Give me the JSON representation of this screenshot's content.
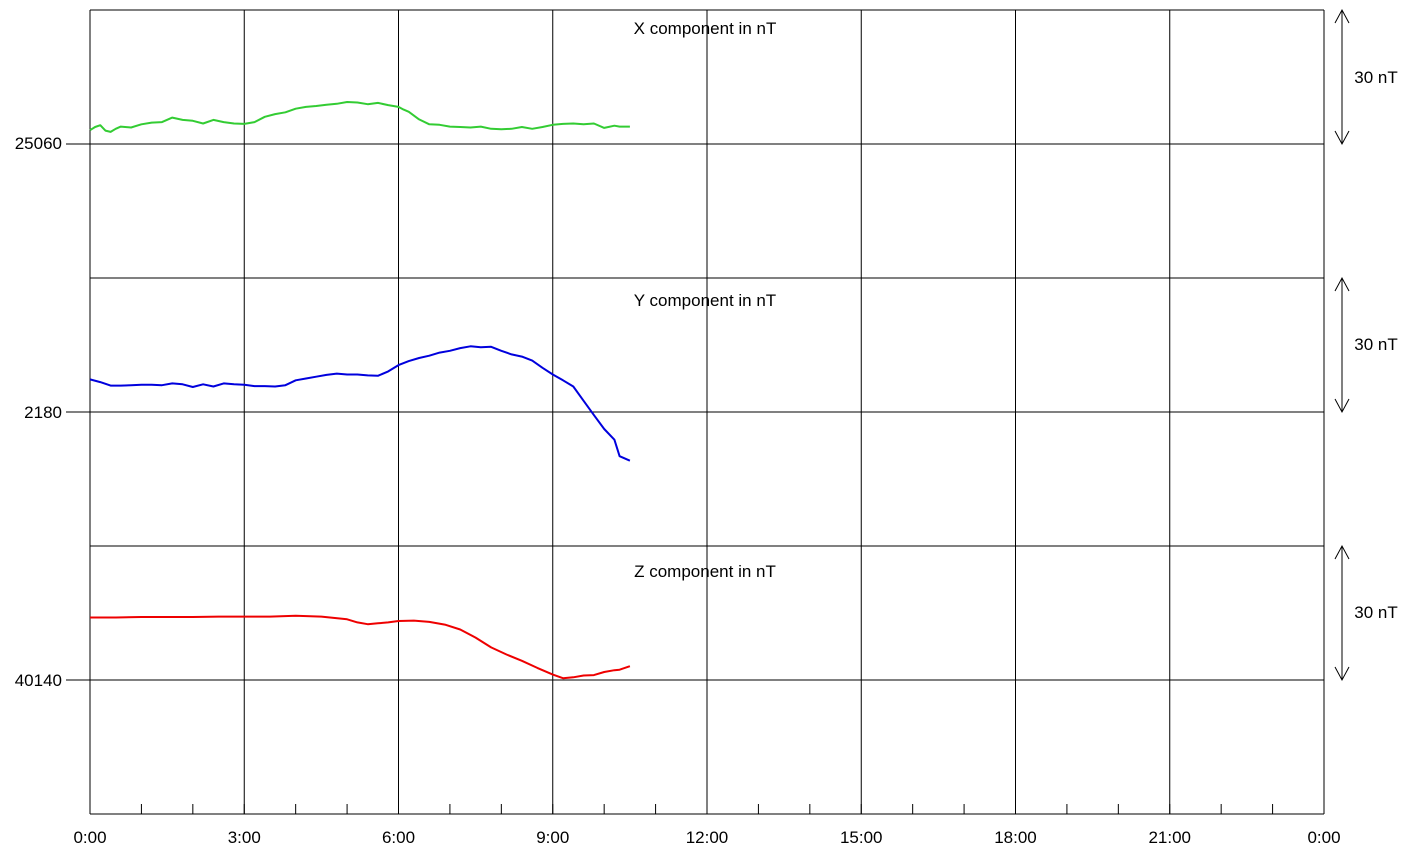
{
  "chart_data": [
    {
      "type": "line",
      "title": "X component in nT",
      "baseline_label": "25060",
      "baseline": 25060,
      "scale_label": "30 nT",
      "ylim": [
        25030,
        25090
      ],
      "xlim": [
        0,
        24
      ],
      "series": [
        {
          "color": "#33cc33",
          "x": [
            0,
            0.1,
            0.2,
            0.3,
            0.4,
            0.5,
            0.6,
            0.8,
            1.0,
            1.2,
            1.4,
            1.6,
            1.8,
            2.0,
            2.2,
            2.4,
            2.6,
            2.8,
            3.0,
            3.2,
            3.4,
            3.6,
            3.8,
            4.0,
            4.2,
            4.4,
            4.6,
            4.8,
            5.0,
            5.2,
            5.4,
            5.6,
            5.8,
            6.0,
            6.1,
            6.2,
            6.4,
            6.6,
            6.8,
            7.0,
            7.2,
            7.4,
            7.6,
            7.8,
            8.0,
            8.2,
            8.4,
            8.6,
            8.8,
            9.0,
            9.2,
            9.4,
            9.6,
            9.8,
            10.0,
            10.2,
            10.3,
            10.5
          ],
          "y": [
            25063.1,
            25063.8,
            25064.2,
            25063.0,
            25062.7,
            25063.4,
            25063.9,
            25063.7,
            25064.4,
            25064.8,
            25064.9,
            25065.9,
            25065.4,
            25065.2,
            25064.6,
            25065.4,
            25064.9,
            25064.6,
            25064.5,
            25064.9,
            25066.1,
            25066.7,
            25067.1,
            25067.9,
            25068.3,
            25068.5,
            25068.8,
            25069.0,
            25069.4,
            25069.3,
            25068.9,
            25069.2,
            25068.7,
            25068.3,
            25067.7,
            25067.2,
            25065.5,
            25064.4,
            25064.3,
            25063.9,
            25063.8,
            25063.7,
            25063.9,
            25063.4,
            25063.3,
            25063.4,
            25063.8,
            25063.4,
            25063.8,
            25064.3,
            25064.5,
            25064.6,
            25064.4,
            25064.6,
            25063.6,
            25064.1,
            25063.9,
            25063.9
          ]
        }
      ]
    },
    {
      "type": "line",
      "title": "Y component in nT",
      "baseline_label": "2180",
      "baseline": 2180,
      "scale_label": "30 nT",
      "ylim": [
        2150,
        2210
      ],
      "xlim": [
        0,
        24
      ],
      "series": [
        {
          "color": "#0000dd",
          "x": [
            0,
            0.2,
            0.4,
            0.6,
            0.8,
            1.0,
            1.2,
            1.4,
            1.6,
            1.8,
            2.0,
            2.2,
            2.4,
            2.6,
            2.8,
            3.0,
            3.2,
            3.4,
            3.6,
            3.8,
            4.0,
            4.2,
            4.4,
            4.6,
            4.8,
            5.0,
            5.2,
            5.4,
            5.6,
            5.8,
            6.0,
            6.2,
            6.4,
            6.6,
            6.8,
            7.0,
            7.2,
            7.4,
            7.6,
            7.8,
            8.0,
            8.2,
            8.4,
            8.6,
            8.8,
            9.0,
            9.2,
            9.4,
            9.6,
            9.8,
            10.0,
            10.2,
            10.3,
            10.5
          ],
          "y": [
            2187.3,
            2186.7,
            2185.9,
            2185.9,
            2186.0,
            2186.1,
            2186.1,
            2186.0,
            2186.4,
            2186.2,
            2185.6,
            2186.2,
            2185.7,
            2186.4,
            2186.2,
            2186.1,
            2185.8,
            2185.8,
            2185.7,
            2186.0,
            2187.1,
            2187.5,
            2187.9,
            2188.3,
            2188.6,
            2188.4,
            2188.4,
            2188.2,
            2188.1,
            2189.1,
            2190.5,
            2191.4,
            2192.1,
            2192.6,
            2193.3,
            2193.7,
            2194.3,
            2194.7,
            2194.5,
            2194.6,
            2193.7,
            2192.9,
            2192.4,
            2191.5,
            2189.9,
            2188.4,
            2187.1,
            2185.7,
            2182.5,
            2179.3,
            2176.2,
            2173.8,
            2170.1,
            2169.1
          ]
        }
      ]
    },
    {
      "type": "line",
      "title": "Z component in nT",
      "baseline_label": "40140",
      "baseline": 40140,
      "scale_label": "30 nT",
      "ylim": [
        40110,
        40170
      ],
      "xlim": [
        0,
        24
      ],
      "series": [
        {
          "color": "#ee0000",
          "x": [
            0,
            0.5,
            1.0,
            1.5,
            2.0,
            2.5,
            3.0,
            3.5,
            4.0,
            4.5,
            5.0,
            5.2,
            5.4,
            5.6,
            5.8,
            6.0,
            6.3,
            6.6,
            6.9,
            7.2,
            7.5,
            7.8,
            8.1,
            8.4,
            8.7,
            9.0,
            9.2,
            9.4,
            9.6,
            9.8,
            10.0,
            10.2,
            10.3,
            10.5
          ],
          "y": [
            40154.0,
            40154.0,
            40154.1,
            40154.1,
            40154.1,
            40154.2,
            40154.2,
            40154.2,
            40154.4,
            40154.2,
            40153.6,
            40152.9,
            40152.5,
            40152.7,
            40152.9,
            40153.2,
            40153.3,
            40153.0,
            40152.4,
            40151.3,
            40149.5,
            40147.3,
            40145.7,
            40144.3,
            40142.7,
            40141.2,
            40140.4,
            40140.6,
            40141.0,
            40141.1,
            40141.8,
            40142.2,
            40142.3,
            40143.1
          ]
        }
      ]
    }
  ],
  "x_axis": {
    "tick_labels": [
      "0:00",
      "3:00",
      "6:00",
      "9:00",
      "12:00",
      "15:00",
      "18:00",
      "21:00",
      "0:00"
    ],
    "range_hours": [
      0,
      24
    ],
    "label_step_hours": 3,
    "minor_tick_hours": 1
  },
  "grid": true
}
